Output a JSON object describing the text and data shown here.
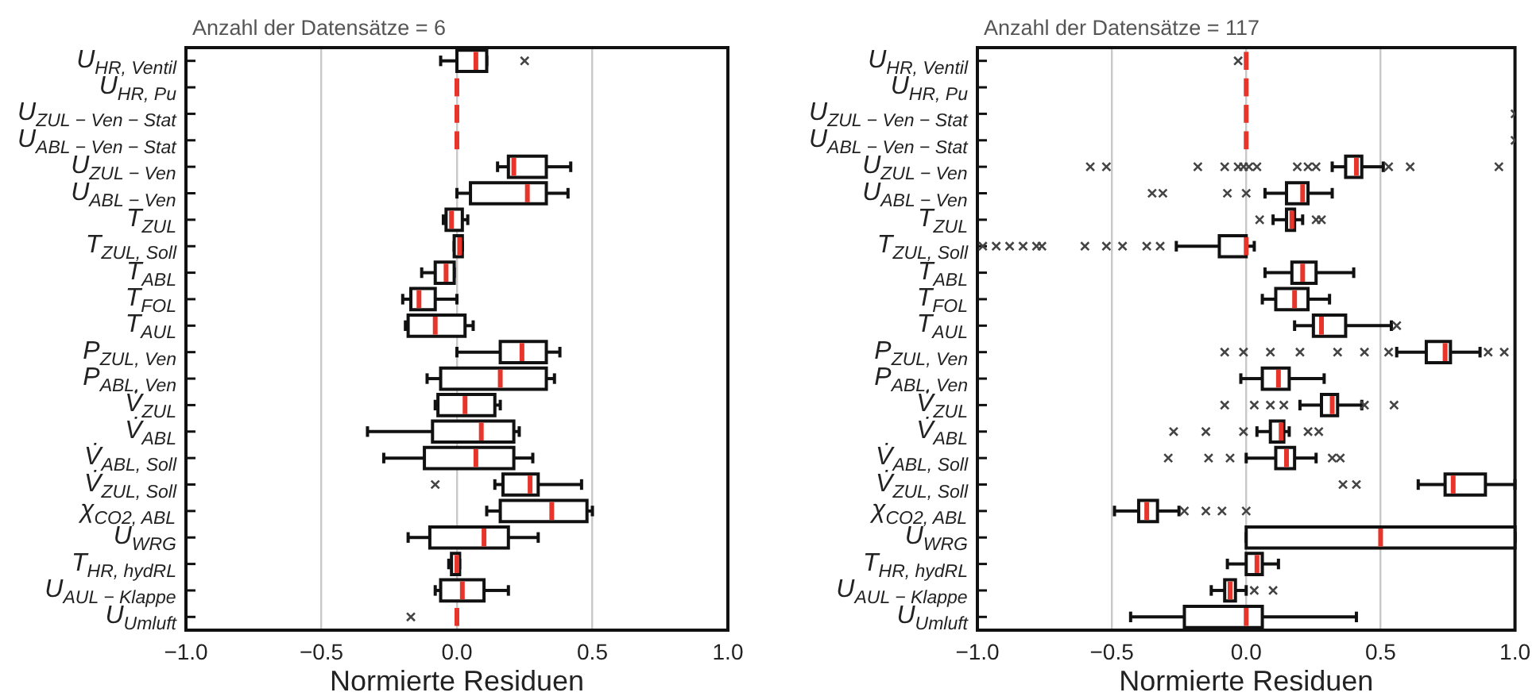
{
  "chart_data": [
    {
      "type": "box",
      "orientation": "horizontal",
      "title": "Anzahl der Datensätze = 6",
      "xlabel": "Normierte Residuen",
      "grid": "x",
      "xlim": [
        -1,
        1
      ],
      "xticks": [
        {
          "value": -1,
          "label": "−1.0"
        },
        {
          "value": -0.5,
          "label": "−0.5"
        },
        {
          "value": 0,
          "label": "0.0"
        },
        {
          "value": 0.5,
          "label": "0.5"
        },
        {
          "value": 1,
          "label": "1.0"
        }
      ],
      "categories": [
        "U$_{HR, Ventil}$",
        "U$_{HR, Pu}$",
        "U$_{ZUL − Ven − Stat}$",
        "U$_{ABL − Ven − Stat}$",
        "U$_{ZUL − Ven}$",
        "U$_{ABL − Ven}$",
        "T$_{ZUL}$",
        "T$_{ZUL, Soll}$",
        "T$_{ABL}$",
        "T$_{FOL}$",
        "T$_{AUL}$",
        "P$_{ZUL, Ven}$",
        "P$_{ABL, Ven}$",
        "V̇$_{ZUL}$",
        "V̇$_{ABL}$",
        "V̇$_{ABL, Soll}$",
        "V̇$_{ZUL, Soll}$",
        "χ$_{CO2, ABL}$",
        "U$_{WRG}$",
        "T$_{HR, hydRL}$",
        "U$_{AUL − Klappe}$",
        "U$_{Umluft}$"
      ],
      "boxes": [
        {
          "low": -0.06,
          "q1": 0.0,
          "median": 0.07,
          "q3": 0.11,
          "high": 0.11,
          "outliers": [
            0.25
          ]
        },
        {
          "low": 0,
          "q1": 0,
          "median": 0,
          "q3": 0,
          "high": 0
        },
        {
          "low": 0,
          "q1": 0,
          "median": 0,
          "q3": 0,
          "high": 0
        },
        {
          "low": 0,
          "q1": 0,
          "median": 0,
          "q3": 0,
          "high": 0
        },
        {
          "low": 0.15,
          "q1": 0.19,
          "median": 0.21,
          "q3": 0.33,
          "high": 0.42
        },
        {
          "low": 0.0,
          "q1": 0.05,
          "median": 0.26,
          "q3": 0.33,
          "high": 0.41
        },
        {
          "low": -0.05,
          "q1": -0.04,
          "median": -0.02,
          "q3": 0.02,
          "high": 0.04
        },
        {
          "low": -0.01,
          "q1": -0.01,
          "median": 0.01,
          "q3": 0.02,
          "high": 0.02
        },
        {
          "low": -0.13,
          "q1": -0.08,
          "median": -0.04,
          "q3": -0.01,
          "high": -0.01
        },
        {
          "low": -0.2,
          "q1": -0.17,
          "median": -0.14,
          "q3": -0.08,
          "high": 0.0
        },
        {
          "low": -0.19,
          "q1": -0.18,
          "median": -0.08,
          "q3": 0.03,
          "high": 0.06
        },
        {
          "low": 0.0,
          "q1": 0.16,
          "median": 0.24,
          "q3": 0.33,
          "high": 0.38
        },
        {
          "low": -0.11,
          "q1": -0.06,
          "median": 0.16,
          "q3": 0.33,
          "high": 0.36
        },
        {
          "low": -0.08,
          "q1": -0.07,
          "median": 0.03,
          "q3": 0.14,
          "high": 0.16
        },
        {
          "low": -0.33,
          "q1": -0.09,
          "median": 0.09,
          "q3": 0.21,
          "high": 0.23
        },
        {
          "low": -0.27,
          "q1": -0.12,
          "median": 0.07,
          "q3": 0.21,
          "high": 0.28
        },
        {
          "low": 0.14,
          "q1": 0.17,
          "median": 0.27,
          "q3": 0.3,
          "high": 0.46,
          "outliers": [
            -0.08
          ]
        },
        {
          "low": 0.11,
          "q1": 0.16,
          "median": 0.35,
          "q3": 0.48,
          "high": 0.5
        },
        {
          "low": -0.18,
          "q1": -0.1,
          "median": 0.1,
          "q3": 0.19,
          "high": 0.3
        },
        {
          "low": -0.03,
          "q1": -0.02,
          "median": 0.0,
          "q3": 0.01,
          "high": 0.01
        },
        {
          "low": -0.08,
          "q1": -0.06,
          "median": 0.02,
          "q3": 0.1,
          "high": 0.19
        },
        {
          "low": 0,
          "q1": 0,
          "median": 0,
          "q3": 0,
          "high": 0,
          "outliers": [
            -0.17
          ]
        }
      ]
    },
    {
      "type": "box",
      "orientation": "horizontal",
      "title": "Anzahl der Datensätze = 117",
      "xlabel": "Normierte Residuen",
      "grid": "x",
      "xlim": [
        -1,
        1
      ],
      "xticks": [
        {
          "value": -1,
          "label": "−1.0"
        },
        {
          "value": -0.5,
          "label": "−0.5"
        },
        {
          "value": 0,
          "label": "0.0"
        },
        {
          "value": 0.5,
          "label": "0.5"
        },
        {
          "value": 1,
          "label": "1.0"
        }
      ],
      "categories": [
        "U$_{HR, Ventil}$",
        "U$_{HR, Pu}$",
        "U$_{ZUL − Ven − Stat}$",
        "U$_{ABL − Ven − Stat}$",
        "U$_{ZUL − Ven}$",
        "U$_{ABL − Ven}$",
        "T$_{ZUL}$",
        "T$_{ZUL, Soll}$",
        "T$_{ABL}$",
        "T$_{FOL}$",
        "T$_{AUL}$",
        "P$_{ZUL, Ven}$",
        "P$_{ABL, Ven}$",
        "V̇$_{ZUL}$",
        "V̇$_{ABL}$",
        "V̇$_{ABL, Soll}$",
        "V̇$_{ZUL, Soll}$",
        "χ$_{CO2, ABL}$",
        "U$_{WRG}$",
        "T$_{HR, hydRL}$",
        "U$_{AUL − Klappe}$",
        "U$_{Umluft}$"
      ],
      "boxes": [
        {
          "low": 0,
          "q1": 0,
          "median": 0,
          "q3": 0,
          "high": 0,
          "outliers": [
            -0.03
          ]
        },
        {
          "low": 0,
          "q1": 0,
          "median": 0,
          "q3": 0,
          "high": 0
        },
        {
          "low": 0,
          "q1": 0,
          "median": 0,
          "q3": 0,
          "high": 0,
          "outliers": [
            1.0
          ]
        },
        {
          "low": 0,
          "q1": 0,
          "median": 0,
          "q3": 0,
          "high": 0,
          "outliers": [
            1.0
          ]
        },
        {
          "low": 0.32,
          "q1": 0.37,
          "median": 0.41,
          "q3": 0.43,
          "high": 0.51,
          "outliers": [
            -0.58,
            -0.52,
            -0.18,
            -0.08,
            -0.03,
            -0.01,
            0.01,
            0.04,
            0.19,
            0.23,
            0.26,
            0.53,
            0.61,
            0.94
          ]
        },
        {
          "low": 0.07,
          "q1": 0.15,
          "median": 0.21,
          "q3": 0.23,
          "high": 0.32,
          "outliers": [
            -0.35,
            -0.31,
            -0.07,
            0.0
          ]
        },
        {
          "low": 0.1,
          "q1": 0.15,
          "median": 0.17,
          "q3": 0.18,
          "high": 0.21,
          "outliers": [
            0.05,
            0.26,
            0.28
          ]
        },
        {
          "low": -0.26,
          "q1": -0.1,
          "median": 0.0,
          "q3": 0.0,
          "high": 0.03,
          "outliers": [
            -0.98,
            -0.93,
            -0.88,
            -0.83,
            -0.78,
            -0.76,
            -0.6,
            -0.52,
            -0.46,
            -0.37,
            -0.32
          ]
        },
        {
          "low": 0.07,
          "q1": 0.17,
          "median": 0.21,
          "q3": 0.26,
          "high": 0.4
        },
        {
          "low": 0.06,
          "q1": 0.11,
          "median": 0.18,
          "q3": 0.23,
          "high": 0.31
        },
        {
          "low": 0.18,
          "q1": 0.25,
          "median": 0.28,
          "q3": 0.37,
          "high": 0.54,
          "outliers": [
            0.56
          ]
        },
        {
          "low": 0.56,
          "q1": 0.67,
          "median": 0.74,
          "q3": 0.76,
          "high": 0.87,
          "outliers": [
            -0.08,
            -0.01,
            0.09,
            0.2,
            0.34,
            0.44,
            0.53,
            0.9,
            0.96
          ]
        },
        {
          "low": -0.02,
          "q1": 0.06,
          "median": 0.12,
          "q3": 0.16,
          "high": 0.29
        },
        {
          "low": 0.2,
          "q1": 0.28,
          "median": 0.32,
          "q3": 0.34,
          "high": 0.43,
          "outliers": [
            -0.08,
            0.03,
            0.09,
            0.14,
            0.44,
            0.55
          ]
        },
        {
          "low": 0.04,
          "q1": 0.09,
          "median": 0.13,
          "q3": 0.14,
          "high": 0.16,
          "outliers": [
            -0.27,
            -0.15,
            -0.01,
            0.23,
            0.27
          ]
        },
        {
          "low": 0.0,
          "q1": 0.11,
          "median": 0.15,
          "q3": 0.18,
          "high": 0.26,
          "outliers": [
            -0.29,
            -0.14,
            -0.06,
            0.32,
            0.35
          ]
        },
        {
          "low": 0.64,
          "q1": 0.74,
          "median": 0.77,
          "q3": 0.89,
          "high": 1.0,
          "outliers": [
            0.36,
            0.41
          ]
        },
        {
          "low": -0.49,
          "q1": -0.4,
          "median": -0.37,
          "q3": -0.33,
          "high": -0.25,
          "outliers": [
            -0.23,
            -0.15,
            -0.09,
            0.0
          ]
        },
        {
          "low": 0,
          "q1": 0,
          "median": 0.5,
          "q3": 1.0,
          "high": 1.0
        },
        {
          "low": -0.07,
          "q1": 0.0,
          "median": 0.04,
          "q3": 0.06,
          "high": 0.12
        },
        {
          "low": -0.13,
          "q1": -0.08,
          "median": -0.06,
          "q3": -0.04,
          "high": 0.0,
          "outliers": [
            0.03,
            0.1
          ]
        },
        {
          "low": -0.43,
          "q1": -0.23,
          "median": 0.0,
          "q3": 0.06,
          "high": 0.41
        }
      ]
    }
  ]
}
